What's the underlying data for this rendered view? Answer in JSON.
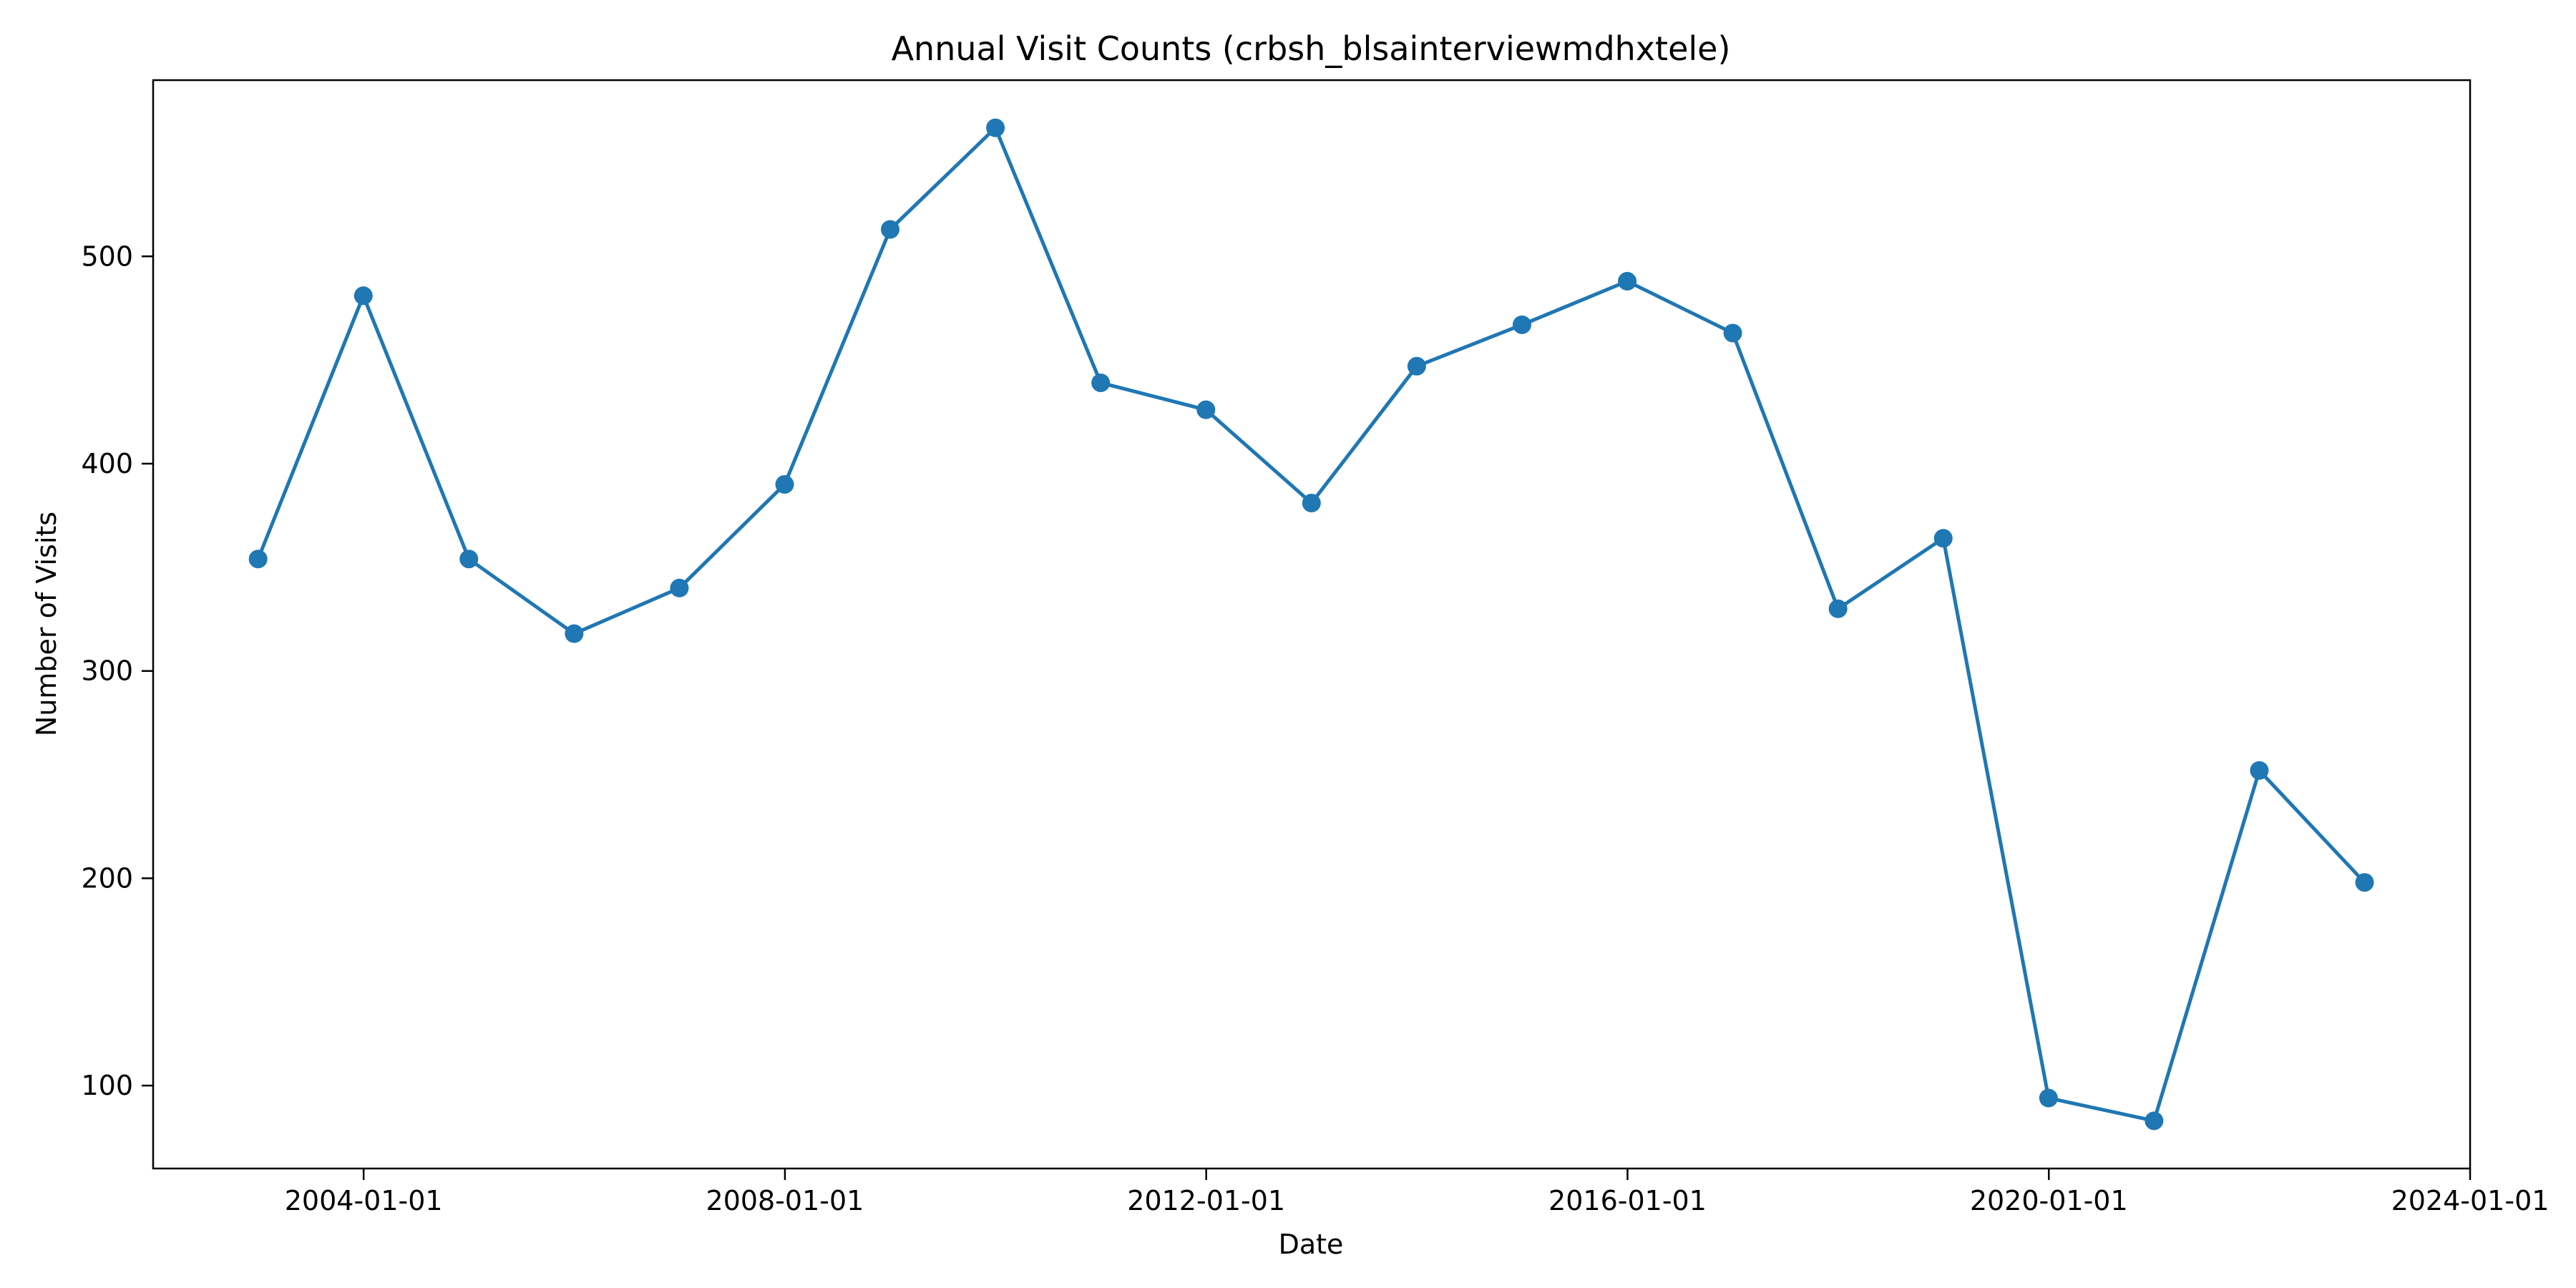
{
  "chart_data": {
    "type": "line",
    "title": "Annual Visit Counts (crbsh_blsainterviewmdhxtele)",
    "xlabel": "Date",
    "ylabel": "Number of Visits",
    "x_tick_labels": [
      "2004-01-01",
      "2008-01-01",
      "2012-01-01",
      "2016-01-01",
      "2020-01-01",
      "2024-01-01"
    ],
    "y_tick_labels": [
      "100",
      "200",
      "300",
      "400",
      "500"
    ],
    "y_ticks": [
      100,
      200,
      300,
      400,
      500
    ],
    "xlim": [
      "2002-01-01",
      "2024-01-01"
    ],
    "ylim": [
      60,
      585
    ],
    "grid": false,
    "series": [
      {
        "color": "#1f77b4",
        "marker": "circle",
        "x": [
          "2002-12-31",
          "2003-12-31",
          "2004-12-31",
          "2005-12-31",
          "2006-12-31",
          "2007-12-31",
          "2008-12-31",
          "2009-12-31",
          "2010-12-31",
          "2011-12-31",
          "2012-12-31",
          "2013-12-31",
          "2014-12-31",
          "2015-12-31",
          "2016-12-31",
          "2017-12-31",
          "2018-12-31",
          "2019-12-31",
          "2020-12-31",
          "2021-12-31",
          "2022-12-31"
        ],
        "values": [
          354,
          481,
          354,
          318,
          340,
          390,
          513,
          562,
          439,
          426,
          381,
          447,
          467,
          488,
          463,
          330,
          364,
          94,
          83,
          252,
          198
        ]
      }
    ]
  }
}
